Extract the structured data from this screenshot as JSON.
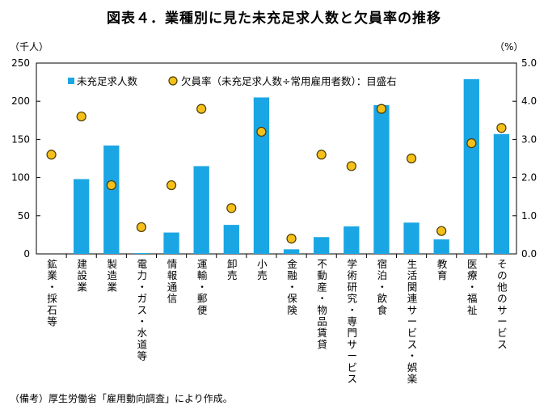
{
  "title": "図表４．業種別に見た未充足求人数と欠員率の推移",
  "source_note": "（備考）厚生労働省「雇用動向調査」により作成。",
  "chart_data": {
    "type": "bar",
    "categories": [
      "鉱業・採石等",
      "建設業",
      "製造業",
      "電力・ガス・水道等",
      "情報通信",
      "運輸・郵便",
      "卸売",
      "小売",
      "金融・保険",
      "不動産・物品賃貸",
      "学術研究・専門サービス",
      "宿泊・飲食",
      "生活関連サービス・娯楽",
      "教育",
      "医療・福祉",
      "その他のサービス"
    ],
    "series": [
      {
        "name": "未充足求人数",
        "kind": "bar",
        "axis": "left",
        "values": [
          0,
          98,
          142,
          1,
          28,
          115,
          38,
          205,
          6,
          22,
          36,
          195,
          41,
          19,
          229,
          157
        ],
        "color": "#1aa6e4"
      },
      {
        "name": "欠員率（未充足求人数÷常用雇用者数）：目盛右",
        "kind": "scatter",
        "axis": "right",
        "values": [
          2.6,
          3.6,
          1.8,
          0.7,
          1.8,
          3.8,
          1.2,
          3.2,
          0.4,
          2.6,
          2.3,
          3.8,
          2.5,
          0.6,
          2.9,
          3.3
        ],
        "color": "#f5c01a",
        "edge": "#4a3b00"
      }
    ],
    "left_axis": {
      "unit": "（千人）",
      "ylim": [
        0,
        250
      ],
      "ticks": [
        "0",
        "50",
        "100",
        "150",
        "200",
        "250"
      ]
    },
    "right_axis": {
      "unit": "（%）",
      "ylim": [
        0,
        5
      ],
      "ticks": [
        "0.0",
        "1.0",
        "2.0",
        "3.0",
        "4.0",
        "5.0"
      ]
    },
    "legend_position": "top"
  }
}
